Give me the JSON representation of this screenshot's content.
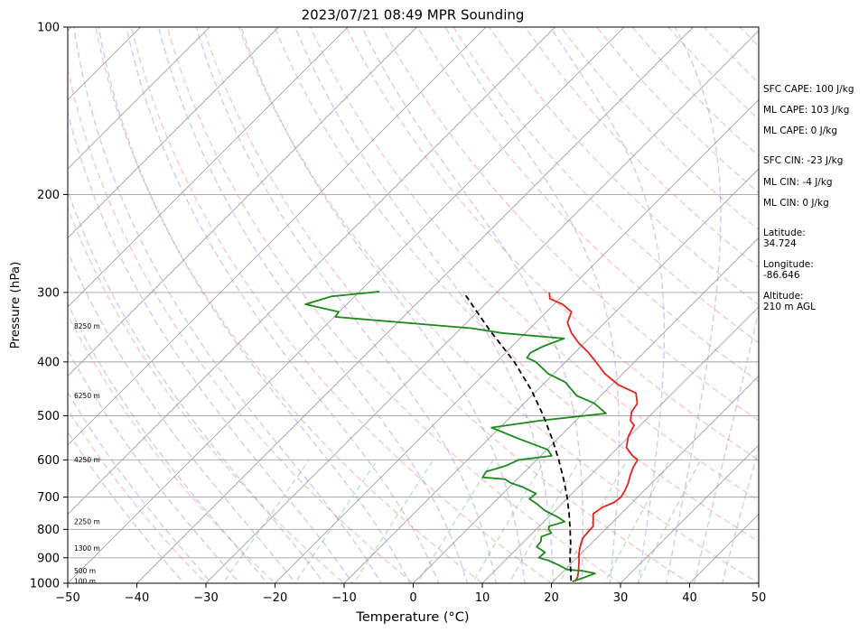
{
  "chart_data": {
    "type": "skew-t",
    "title": "2023/07/21 08:49 MPR Sounding",
    "xlabel": "Temperature (°C)",
    "ylabel": "Pressure (hPa)",
    "xlim": [
      -50,
      50
    ],
    "ylim": [
      1000,
      100
    ],
    "y_scale": "log",
    "grid": true,
    "x_ticks": [
      -50,
      -40,
      -30,
      -20,
      -10,
      0,
      10,
      20,
      30,
      40,
      50
    ],
    "y_ticks": [
      1000,
      900,
      800,
      700,
      600,
      500,
      400,
      300,
      200,
      100
    ],
    "height_labels": [
      {
        "label": "100 m",
        "p": 993
      },
      {
        "label": "500 m",
        "p": 950
      },
      {
        "label": "1300 m",
        "p": 866
      },
      {
        "label": "2250 m",
        "p": 775
      },
      {
        "label": "4250 m",
        "p": 600
      },
      {
        "label": "6250 m",
        "p": 460
      },
      {
        "label": "8250 m",
        "p": 345
      }
    ],
    "series": [
      {
        "kind": "temperature",
        "color": "#e8201b",
        "points": [
          [
            23.2,
            993
          ],
          [
            22.9,
            975
          ],
          [
            22.3,
            955
          ],
          [
            21.6,
            935
          ],
          [
            20.7,
            910
          ],
          [
            19.9,
            890
          ],
          [
            19.2,
            870
          ],
          [
            18.6,
            850
          ],
          [
            18.0,
            830
          ],
          [
            17.9,
            810
          ],
          [
            17.8,
            790
          ],
          [
            16.9,
            770
          ],
          [
            16.0,
            750
          ],
          [
            16.4,
            730
          ],
          [
            17.4,
            715
          ],
          [
            17.6,
            700
          ],
          [
            17.2,
            680
          ],
          [
            16.6,
            660
          ],
          [
            15.8,
            640
          ],
          [
            15.1,
            620
          ],
          [
            14.6,
            600
          ],
          [
            13.3,
            590
          ],
          [
            11.2,
            570
          ],
          [
            9.9,
            545
          ],
          [
            9.1,
            520
          ],
          [
            7.9,
            510
          ],
          [
            6.8,
            492
          ],
          [
            6.4,
            475
          ],
          [
            4.7,
            455
          ],
          [
            1.0,
            440
          ],
          [
            -2.6,
            420
          ],
          [
            -5.6,
            400
          ],
          [
            -8.0,
            385
          ],
          [
            -10.8,
            370
          ],
          [
            -13.3,
            355
          ],
          [
            -15.4,
            340
          ],
          [
            -16.4,
            325
          ],
          [
            -18.8,
            315
          ],
          [
            -21.4,
            308
          ],
          [
            -22.4,
            300
          ]
        ]
      },
      {
        "kind": "dewpoint",
        "color": "#1a8a1a",
        "points": [
          [
            22.8,
            993
          ],
          [
            24.0,
            975
          ],
          [
            24.9,
            960
          ],
          [
            22.7,
            950
          ],
          [
            20.3,
            945
          ],
          [
            18.7,
            930
          ],
          [
            16.3,
            910
          ],
          [
            14.5,
            900
          ],
          [
            14.6,
            880
          ],
          [
            12.6,
            860
          ],
          [
            12.4,
            840
          ],
          [
            11.8,
            825
          ],
          [
            12.7,
            812
          ],
          [
            11.8,
            800
          ],
          [
            11.4,
            790
          ],
          [
            13.0,
            775
          ],
          [
            11.3,
            760
          ],
          [
            8.5,
            740
          ],
          [
            6.4,
            720
          ],
          [
            4.6,
            705
          ],
          [
            4.8,
            690
          ],
          [
            2.0,
            672
          ],
          [
            -0.4,
            660
          ],
          [
            -1.8,
            650
          ],
          [
            -5.3,
            645
          ],
          [
            -5.6,
            630
          ],
          [
            -3.6,
            615
          ],
          [
            -2.6,
            600
          ],
          [
            1.6,
            590
          ],
          [
            0.1,
            575
          ],
          [
            -5.6,
            550
          ],
          [
            -11.2,
            525
          ],
          [
            -5.2,
            510
          ],
          [
            3.3,
            495
          ],
          [
            0.2,
            475
          ],
          [
            -3.5,
            460
          ],
          [
            -7.1,
            435
          ],
          [
            -10.8,
            420
          ],
          [
            -14.3,
            400
          ],
          [
            -16.2,
            393
          ],
          [
            -16.4,
            385
          ],
          [
            -15.5,
            375
          ],
          [
            -13.6,
            363
          ],
          [
            -23.3,
            355
          ],
          [
            -28.4,
            348
          ],
          [
            -49.8,
            332
          ],
          [
            -50.1,
            325
          ],
          [
            -56.0,
            315
          ],
          [
            -53.4,
            305
          ],
          [
            -47.1,
            299
          ]
        ]
      },
      {
        "kind": "parcel",
        "color": "#000000",
        "style": "dashed",
        "points": [
          [
            22.5,
            990
          ],
          [
            21.0,
            950
          ],
          [
            19.0,
            900
          ],
          [
            17.1,
            850
          ],
          [
            14.9,
            800
          ],
          [
            12.5,
            750
          ],
          [
            9.8,
            700
          ],
          [
            6.7,
            650
          ],
          [
            3.2,
            600
          ],
          [
            -0.8,
            550
          ],
          [
            -5.4,
            500
          ],
          [
            -10.8,
            450
          ],
          [
            -17.4,
            400
          ],
          [
            -25.7,
            350
          ],
          [
            -31.0,
            320
          ],
          [
            -34.8,
            300
          ]
        ]
      }
    ]
  },
  "stats": {
    "sfc_cape": "SFC CAPE: 100 J/kg",
    "ml_cape_1": "ML CAPE: 103 J/kg",
    "ml_cape_2": "ML CAPE: 0 J/kg",
    "sfc_cin": "SFC CIN: -23 J/kg",
    "ml_cin_1": "ML CIN: -4 J/kg",
    "ml_cin_2": "ML CIN: 0 J/kg",
    "lat_label": "Latitude:",
    "lat_value": "34.724",
    "lon_label": "Longitude:",
    "lon_value": "-86.646",
    "alt_label": "Altitude:",
    "alt_value": "210 m AGL"
  }
}
